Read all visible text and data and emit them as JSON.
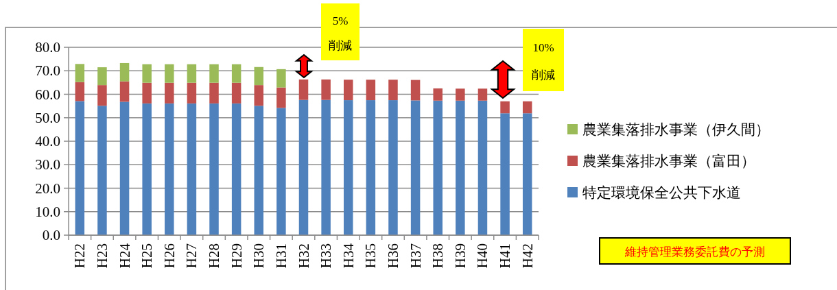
{
  "chart_data": {
    "type": "bar",
    "stacked": true,
    "categories": [
      "H22",
      "H23",
      "H24",
      "H25",
      "H26",
      "H27",
      "H28",
      "H29",
      "H30",
      "H31",
      "H32",
      "H33",
      "H34",
      "H35",
      "H36",
      "H37",
      "H38",
      "H39",
      "H40",
      "H41",
      "H42"
    ],
    "series": [
      {
        "name": "特定環境保全公共下水道",
        "color": "#4f81bd",
        "values": [
          57.1,
          55.1,
          56.8,
          56.1,
          56.1,
          56.1,
          56.1,
          56.1,
          55.1,
          54.2,
          57.6,
          57.6,
          57.5,
          57.5,
          57.5,
          57.4,
          57.3,
          57.3,
          57.3,
          51.9,
          51.9
        ]
      },
      {
        "name": "農業集落排水事業（富田）",
        "color": "#c0504d",
        "values": [
          8.1,
          8.8,
          8.7,
          8.8,
          8.8,
          8.8,
          8.8,
          8.8,
          8.8,
          8.7,
          8.7,
          8.7,
          8.7,
          8.7,
          8.7,
          8.7,
          5.2,
          5.1,
          5.1,
          5.1,
          5.1
        ]
      },
      {
        "name": "農業集落排水事業（伊久間）",
        "color": "#9bbb59",
        "values": [
          7.7,
          7.6,
          7.8,
          7.9,
          7.9,
          7.9,
          7.9,
          7.9,
          7.7,
          7.8,
          null,
          null,
          null,
          null,
          null,
          null,
          null,
          null,
          null,
          null,
          null
        ]
      }
    ],
    "ylim": [
      0,
      80
    ],
    "yticks": [
      {
        "value": 0,
        "label": "0.0"
      },
      {
        "value": 10,
        "label": "10.0"
      },
      {
        "value": 20,
        "label": "20.0"
      },
      {
        "value": 30,
        "label": "30.0"
      },
      {
        "value": 40,
        "label": "40.0"
      },
      {
        "value": 50,
        "label": "50.0"
      },
      {
        "value": 60,
        "label": "60.0"
      },
      {
        "value": 70,
        "label": "70.0"
      },
      {
        "value": 80,
        "label": "80.0"
      }
    ],
    "grid": "y",
    "legend": "right",
    "annotations": [
      "5%\n削減",
      "10%\n削減",
      "維持管理業務委託費の予測"
    ]
  }
}
